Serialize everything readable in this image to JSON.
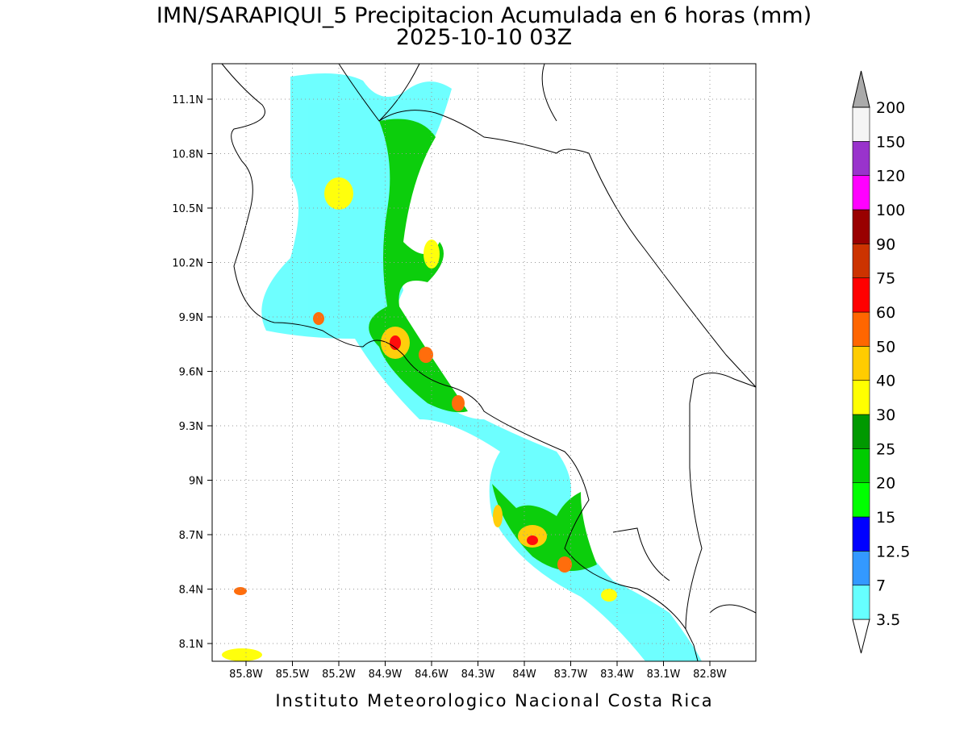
{
  "title": "IMN/SARAPIQUI_5 Precipitacion Acumulada en 6 horas (mm)",
  "subtitle": "2025-10-10 03Z",
  "map": {
    "lat_labels": [
      "11.1N",
      "10.8N",
      "10.5N",
      "10.2N",
      "9.9N",
      "9.6N",
      "9.3N",
      "9N",
      "8.7N",
      "8.4N",
      "8.1N"
    ],
    "lon_labels": [
      "85.8W",
      "85.5W",
      "85.2W",
      "84.9W",
      "84.6W",
      "84.3W",
      "84W",
      "83.7W",
      "83.4W",
      "83.1W",
      "82.8W"
    ]
  },
  "colorbar": {
    "levels": [
      3.5,
      7,
      12.5,
      15,
      20,
      25,
      30,
      40,
      50,
      60,
      75,
      90,
      100,
      120,
      150,
      200
    ],
    "colors": [
      "#ffffff",
      "#66ffff",
      "#3399ff",
      "#0000ff",
      "#00ff00",
      "#00cc00",
      "#009900",
      "#ffff00",
      "#ffcc00",
      "#ff6600",
      "#ff0000",
      "#cc3300",
      "#990000",
      "#ff00ff",
      "#9933cc",
      "#f5f5f5",
      "#aaaaaa"
    ]
  },
  "footer": "Instituto Meteorologico Nacional Costa Rica"
}
